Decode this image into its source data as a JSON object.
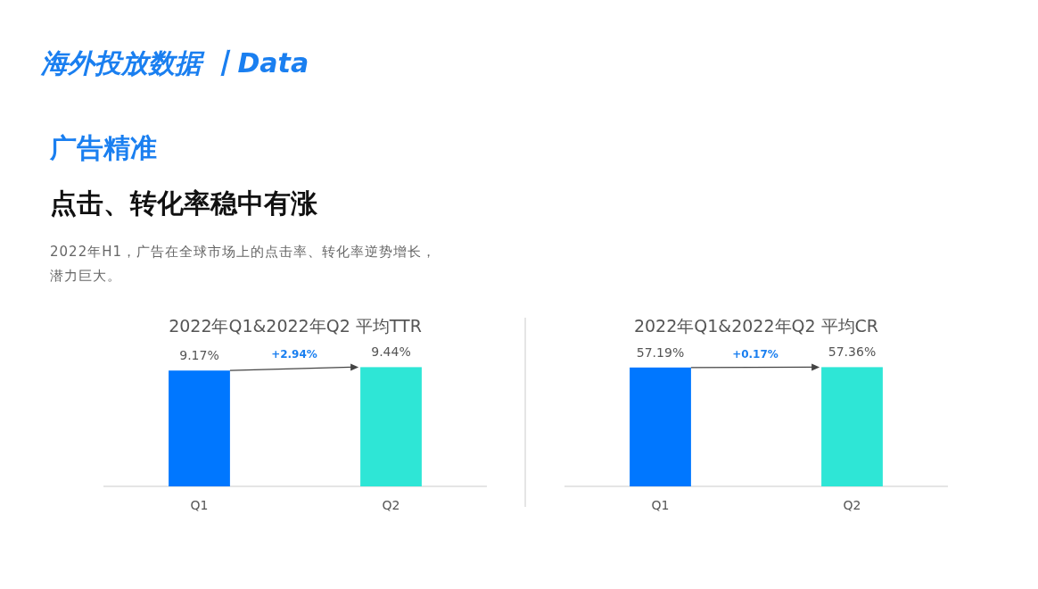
{
  "chart_data": [
    {
      "type": "other",
      "title": "海外投放数据 丨Data",
      "subtitle": "广告精准",
      "annotations": [
        "点击、转化率稳中有涨",
        "2022年H1，广告在全球市场上的点击率、转化率逆势增长，潜力巨大。"
      ]
    },
    {
      "type": "bar",
      "title": "2022年Q1&2022年Q2 平均TTR",
      "categories": [
        "Q1",
        "Q2"
      ],
      "values": [
        9.17,
        9.44
      ],
      "colors": [
        "#0077ff",
        "#2ee6d6"
      ],
      "value_labels": [
        "9.17%",
        "9.44%"
      ],
      "annotations": [
        "+2.94%"
      ]
    },
    {
      "type": "bar",
      "title": "2022年Q1&2022年Q2 平均CR",
      "categories": [
        "Q1",
        "Q2"
      ],
      "values": [
        57.19,
        57.36
      ],
      "colors": [
        "#0077ff",
        "#2ee6d6"
      ],
      "value_labels": [
        "57.19%",
        "57.36%"
      ],
      "annotations": [
        "+0.17%"
      ]
    }
  ]
}
